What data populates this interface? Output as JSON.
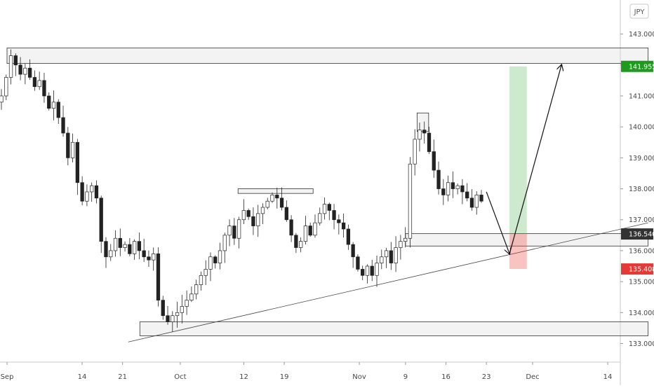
{
  "chart_data": {
    "type": "candlestick",
    "currency_label": "JPY",
    "y_range": [
      132.4,
      144.1
    ],
    "y_ticks": [
      133.0,
      134.0,
      135.0,
      136.0,
      137.0,
      138.0,
      139.0,
      140.0,
      141.0,
      142.0,
      143.0
    ],
    "y_tick_labels": [
      "133.000",
      "134.000",
      "135.000",
      "136.000",
      "137.000",
      "138.000",
      "139.000",
      "140.000",
      "141.000",
      "142.000",
      "143.000"
    ],
    "x_labels": [
      "Sep",
      "14",
      "21",
      "Oct",
      "12",
      "19",
      "Nov",
      "9",
      "16",
      "23",
      "Dec",
      "14"
    ],
    "price_badges": [
      {
        "label": "141.955",
        "value": 141.955,
        "color": "#1e9b1e"
      },
      {
        "label": "136.540",
        "value": 136.54,
        "color": "#333333"
      },
      {
        "label": "135.408",
        "value": 135.408,
        "color": "#e53935"
      }
    ],
    "zones": [
      {
        "name": "resistance-zone",
        "from": "Sep 1",
        "to": "Dec 21",
        "low": 142.05,
        "high": 142.55
      },
      {
        "name": "mid-resistance-zone",
        "from": "Oct 11",
        "to": "Oct 24",
        "low": 137.85,
        "high": 138.0
      },
      {
        "name": "support-zone",
        "from": "Nov 9",
        "to": "Dec 21",
        "low": 136.15,
        "high": 136.55
      },
      {
        "name": "low-support-zone",
        "from": "Sep 24",
        "to": "Dec 21",
        "low": 133.25,
        "high": 133.7
      },
      {
        "name": "swing-high-marker",
        "from": "Nov 11",
        "to": "Nov 13",
        "low": 139.85,
        "high": 140.45
      }
    ],
    "trendline": {
      "from": {
        "x": "Sep 22",
        "y": 133.05
      },
      "to": {
        "x": "Dec 21",
        "y": 136.9
      }
    },
    "position": {
      "entry": 136.54,
      "target": 141.955,
      "stop": 135.408,
      "from": "Nov 27",
      "to": "Nov 30"
    },
    "projection": [
      {
        "x": "Nov 23",
        "y": 137.9
      },
      {
        "x": "Nov 27",
        "y": 135.9
      },
      {
        "x": "Dec 6",
        "y": 142.0
      }
    ],
    "series": [
      {
        "name": "",
        "values": [
          141.0,
          141.6,
          142.3,
          142.0,
          141.7,
          141.9,
          141.6,
          141.3,
          141.5,
          141.0,
          140.6,
          140.8,
          140.3,
          139.8,
          139.0,
          139.5,
          138.2,
          137.6,
          137.9,
          138.1,
          137.7,
          136.3,
          135.8,
          136.0,
          136.4,
          136.1,
          136.2,
          135.9,
          136.3,
          136.0,
          135.8,
          135.7,
          135.9,
          134.4,
          133.9,
          133.7,
          133.9,
          134.0,
          134.2,
          134.4,
          134.6,
          134.9,
          135.2,
          135.4,
          135.8,
          135.6,
          136.0,
          136.5,
          136.8,
          136.4,
          137.0,
          137.3,
          137.1,
          136.8,
          137.2,
          137.4,
          137.6,
          137.8,
          137.7,
          137.4,
          137.0,
          136.5,
          136.1,
          136.3,
          136.8,
          136.5,
          136.9,
          137.2,
          137.5,
          137.3,
          137.0,
          136.9,
          136.7,
          136.2,
          135.8,
          135.4,
          135.2,
          135.5,
          135.2,
          135.6,
          135.8,
          136.0,
          135.6,
          136.1,
          136.3,
          136.4,
          138.8,
          139.6,
          139.9,
          139.8,
          139.2,
          138.6,
          138.0,
          137.8,
          138.2,
          138.0,
          138.1,
          137.9,
          137.7,
          137.4,
          137.8,
          137.6
        ]
      }
    ]
  }
}
